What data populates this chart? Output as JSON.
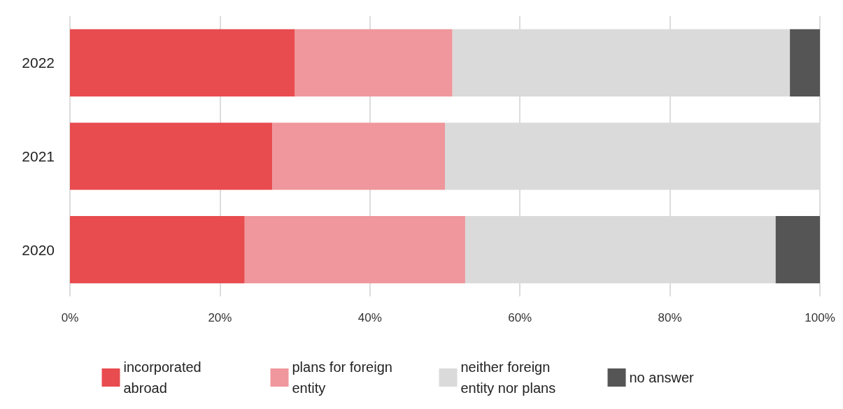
{
  "chart_data": {
    "type": "bar",
    "orientation": "horizontal",
    "stacked": true,
    "categories": [
      "2022",
      "2021",
      "2020"
    ],
    "series": [
      {
        "name": "incorporated abroad",
        "color": "#e84c4f",
        "values": [
          30,
          27,
          23.3
        ]
      },
      {
        "name": "plans for foreign entity",
        "color": "#ef979c",
        "values": [
          21,
          23,
          29.4
        ]
      },
      {
        "name": "neither foreign entity nor plans",
        "color": "#dadada",
        "values": [
          45,
          50,
          41.4
        ]
      },
      {
        "name": "no answer",
        "color": "#555555",
        "values": [
          4,
          0,
          5.9
        ]
      }
    ],
    "xlim": [
      0,
      100
    ],
    "xticks": [
      {
        "value": 0,
        "label": "0%"
      },
      {
        "value": 20,
        "label": "20%"
      },
      {
        "value": 40,
        "label": "40%"
      },
      {
        "value": 60,
        "label": "60%"
      },
      {
        "value": 80,
        "label": "80%"
      },
      {
        "value": 100,
        "label": "100%"
      }
    ],
    "grid": "x",
    "legend": "bottom"
  }
}
